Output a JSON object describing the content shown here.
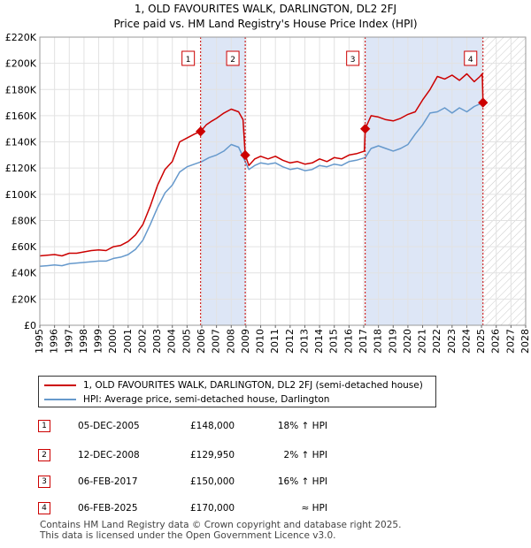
{
  "chart_data": {
    "type": "line",
    "title": "1, OLD FAVOURITES WALK, DARLINGTON, DL2 2FJ",
    "subtitle": "Price paid vs. HM Land Registry's House Price Index (HPI)",
    "xlabel": "",
    "ylabel": "",
    "xlim": [
      1995,
      2028
    ],
    "ylim": [
      0,
      220000
    ],
    "y_ticks": [
      0,
      20000,
      40000,
      60000,
      80000,
      100000,
      120000,
      140000,
      160000,
      180000,
      200000,
      220000
    ],
    "y_tick_labels": [
      "£0",
      "£20K",
      "£40K",
      "£60K",
      "£80K",
      "£100K",
      "£120K",
      "£140K",
      "£160K",
      "£180K",
      "£200K",
      "£220K"
    ],
    "x_ticks": [
      1995,
      1996,
      1997,
      1998,
      1999,
      2000,
      2001,
      2002,
      2003,
      2004,
      2005,
      2006,
      2007,
      2008,
      2009,
      2010,
      2011,
      2012,
      2013,
      2014,
      2015,
      2016,
      2017,
      2018,
      2019,
      2020,
      2021,
      2022,
      2023,
      2024,
      2025,
      2026,
      2027,
      2028
    ],
    "x_tick_labels": [
      "1995",
      "1996",
      "1997",
      "1998",
      "1999",
      "2000",
      "2001",
      "2002",
      "2003",
      "2004",
      "2005",
      "2006",
      "2007",
      "2008",
      "2009",
      "2010",
      "2011",
      "2012",
      "2013",
      "2014",
      "2015",
      "2016",
      "2017",
      "2018",
      "2019",
      "2020",
      "2021",
      "2022",
      "2023",
      "2024",
      "2025",
      "2026",
      "2027",
      "2028"
    ],
    "grid": true,
    "legend_position": "below",
    "ownership_periods": [
      {
        "from": 2005.92,
        "to": 2008.95
      },
      {
        "from": 2017.1,
        "to": 2025.1
      }
    ],
    "future_hatch_from": 2025.1,
    "series": [
      {
        "name": "1, OLD FAVOURITES WALK, DARLINGTON, DL2 2FJ (semi-detached house)",
        "color": "#cc0000",
        "x": [
          1995,
          1995.5,
          1996,
          1996.5,
          1997,
          1997.5,
          1998,
          1998.5,
          1999,
          1999.5,
          2000,
          2000.5,
          2001,
          2001.5,
          2002,
          2002.5,
          2003,
          2003.5,
          2004,
          2004.5,
          2005,
          2005.5,
          2005.92,
          2006.3,
          2006.7,
          2007,
          2007.5,
          2008,
          2008.5,
          2008.8,
          2008.95,
          2009.2,
          2009.6,
          2010,
          2010.5,
          2011,
          2011.5,
          2012,
          2012.5,
          2013,
          2013.5,
          2014,
          2014.5,
          2015,
          2015.5,
          2016,
          2016.5,
          2017.05,
          2017.1,
          2017.5,
          2018,
          2018.5,
          2019,
          2019.5,
          2020,
          2020.5,
          2021,
          2021.5,
          2022,
          2022.5,
          2023,
          2023.5,
          2024,
          2024.5,
          2024.9,
          2025.05,
          2025.1
        ],
        "values": [
          53000,
          53500,
          54000,
          53000,
          55000,
          55000,
          56000,
          57000,
          57500,
          57000,
          60000,
          61000,
          64000,
          69000,
          77000,
          91000,
          107000,
          119000,
          125000,
          140000,
          143000,
          146000,
          148000,
          153000,
          156000,
          158000,
          162000,
          165000,
          163000,
          157000,
          129950,
          122000,
          127000,
          129000,
          127000,
          129000,
          126000,
          124000,
          125000,
          123000,
          124000,
          127000,
          125000,
          128000,
          127000,
          130000,
          131000,
          133000,
          150000,
          160000,
          159000,
          157000,
          156000,
          158000,
          161000,
          163000,
          172000,
          180000,
          190000,
          188000,
          191000,
          187000,
          192000,
          186000,
          190000,
          192000,
          170000
        ]
      },
      {
        "name": "HPI: Average price, semi-detached house, Darlington",
        "color": "#6699cc",
        "x": [
          1995,
          1995.5,
          1996,
          1996.5,
          1997,
          1997.5,
          1998,
          1998.5,
          1999,
          1999.5,
          2000,
          2000.5,
          2001,
          2001.5,
          2002,
          2002.5,
          2003,
          2003.5,
          2004,
          2004.5,
          2005,
          2005.5,
          2006,
          2006.5,
          2007,
          2007.5,
          2008,
          2008.5,
          2008.95,
          2009.2,
          2009.6,
          2010,
          2010.5,
          2011,
          2011.5,
          2012,
          2012.5,
          2013,
          2013.5,
          2014,
          2014.5,
          2015,
          2015.5,
          2016,
          2016.5,
          2017.1,
          2017.5,
          2018,
          2018.5,
          2019,
          2019.5,
          2020,
          2020.5,
          2021,
          2021.5,
          2022,
          2022.5,
          2023,
          2023.5,
          2024,
          2024.5,
          2025.1
        ],
        "values": [
          45000,
          45500,
          46000,
          45500,
          47000,
          47500,
          48000,
          48500,
          49000,
          49000,
          51000,
          52000,
          54000,
          58000,
          65000,
          77000,
          90000,
          101000,
          107000,
          117000,
          121000,
          123000,
          125000,
          128000,
          130000,
          133000,
          138000,
          136000,
          125000,
          119000,
          122000,
          124000,
          123000,
          124000,
          121000,
          119000,
          120000,
          118000,
          119000,
          122000,
          121000,
          123000,
          122000,
          125000,
          126000,
          128000,
          135000,
          137000,
          135000,
          133000,
          135000,
          138000,
          146000,
          153000,
          162000,
          163000,
          166000,
          162000,
          166000,
          163000,
          167000,
          170000
        ]
      }
    ],
    "sale_markers": [
      {
        "label": "1",
        "x": 2005.92,
        "value": 148000
      },
      {
        "label": "2",
        "x": 2008.95,
        "value": 129950
      },
      {
        "label": "3",
        "x": 2017.1,
        "value": 150000
      },
      {
        "label": "4",
        "x": 2025.1,
        "value": 170000
      }
    ]
  },
  "legend": {
    "property_label": "1, OLD FAVOURITES WALK, DARLINGTON, DL2 2FJ (semi-detached house)",
    "hpi_label": "HPI: Average price, semi-detached house, Darlington"
  },
  "sales": [
    {
      "num": "1",
      "date": "05-DEC-2005",
      "price": "£148,000",
      "hpi": "18% ↑ HPI"
    },
    {
      "num": "2",
      "date": "12-DEC-2008",
      "price": "£129,950",
      "hpi": "2% ↑ HPI"
    },
    {
      "num": "3",
      "date": "06-FEB-2017",
      "price": "£150,000",
      "hpi": "16% ↑ HPI"
    },
    {
      "num": "4",
      "date": "06-FEB-2025",
      "price": "£170,000",
      "hpi": "≈ HPI"
    }
  ],
  "footer": {
    "line1": "Contains HM Land Registry data © Crown copyright and database right 2025.",
    "line2": "This data is licensed under the Open Government Licence v3.0."
  }
}
